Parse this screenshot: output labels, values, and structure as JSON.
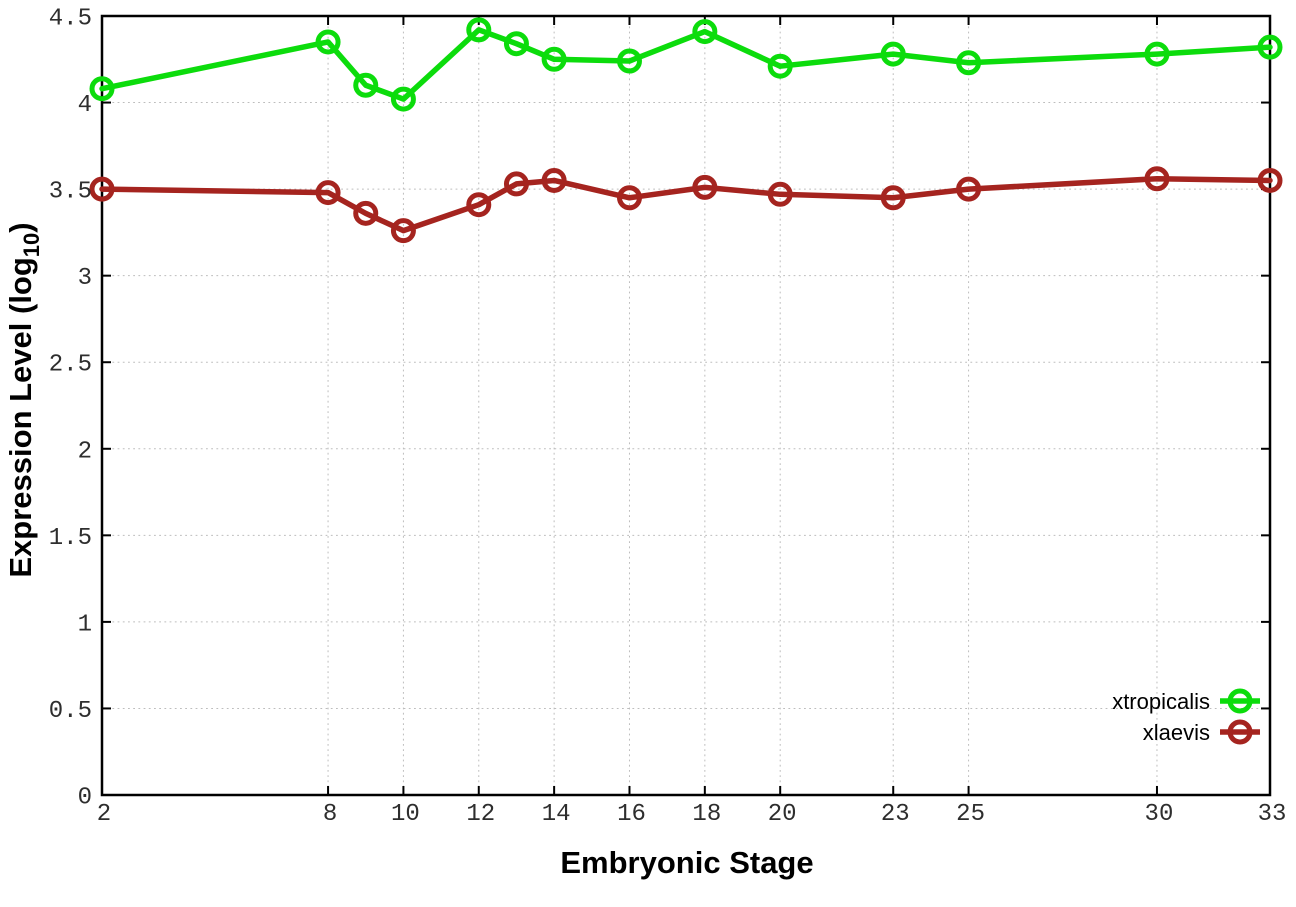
{
  "chart_data": {
    "type": "line",
    "title": "",
    "xlabel": "Embryonic Stage",
    "ylabel": "Expression Level (log10)",
    "ylabel_parts": {
      "main": "Expression Level (log",
      "sub": "10",
      "close": ")"
    },
    "xlim": [
      2,
      33
    ],
    "ylim": [
      0,
      4.5
    ],
    "grid": true,
    "legend_position": "bottom-right",
    "x": [
      2,
      8,
      9,
      10,
      12,
      13,
      14,
      16,
      18,
      20,
      23,
      25,
      30,
      33
    ],
    "xticks": [
      2,
      8,
      10,
      12,
      14,
      16,
      18,
      20,
      23,
      25,
      30,
      33
    ],
    "xtick_labels": [
      "2",
      "8",
      "10",
      "12",
      "14",
      "16",
      "18",
      "20",
      "23",
      "25",
      "30",
      "33"
    ],
    "yticks": [
      0,
      0.5,
      1,
      1.5,
      2,
      2.5,
      3,
      3.5,
      4,
      4.5
    ],
    "ytick_labels": [
      "0",
      "0.5",
      "1",
      "1.5",
      "2",
      "2.5",
      "3",
      "3.5",
      "4",
      "4.5"
    ],
    "series": [
      {
        "name": "xtropicalis",
        "color": "#0cdc0c",
        "values": [
          4.08,
          4.35,
          4.1,
          4.02,
          4.42,
          4.34,
          4.25,
          4.24,
          4.41,
          4.21,
          4.28,
          4.23,
          4.28,
          4.32
        ]
      },
      {
        "name": "xlaevis",
        "color": "#a5241f",
        "values": [
          3.5,
          3.48,
          3.36,
          3.26,
          3.41,
          3.53,
          3.55,
          3.45,
          3.51,
          3.47,
          3.45,
          3.5,
          3.56,
          3.55
        ]
      }
    ]
  },
  "colors": {
    "frame": "#000000",
    "grid": "#bdbdbd",
    "tick_text": "#2e2e2e",
    "background": "#ffffff"
  }
}
